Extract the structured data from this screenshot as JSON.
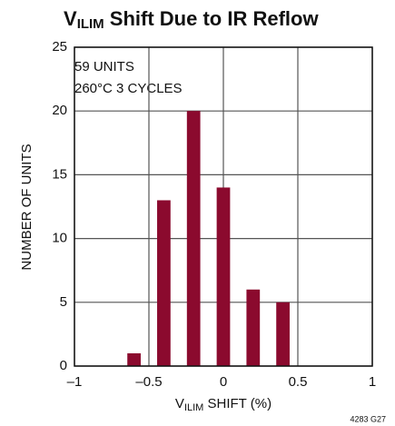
{
  "chart_data": {
    "type": "bar",
    "title": {
      "main": "V",
      "sub": "ILIM",
      "rest": " Shift Due to IR Reflow"
    },
    "xlabel": {
      "main": "V",
      "sub": "ILIM",
      "rest": " SHIFT (%)"
    },
    "ylabel": "NUMBER OF UNITS",
    "annotations": [
      "59 UNITS",
      "260°C 3 CYCLES"
    ],
    "footnote": "4283 G27",
    "x": [
      -0.6,
      -0.4,
      -0.2,
      0,
      0.2,
      0.4
    ],
    "values": [
      1,
      13,
      20,
      14,
      6,
      5
    ],
    "color": "#8b0a2e",
    "xlim": [
      -1,
      1
    ],
    "xticks": [
      {
        "value": -1,
        "label": "–1"
      },
      {
        "value": -0.5,
        "label": "–0.5"
      },
      0,
      0.5,
      1
    ],
    "ylim": [
      0,
      25
    ],
    "yticks": [
      0,
      5,
      10,
      15,
      20,
      25
    ],
    "grid": true
  }
}
